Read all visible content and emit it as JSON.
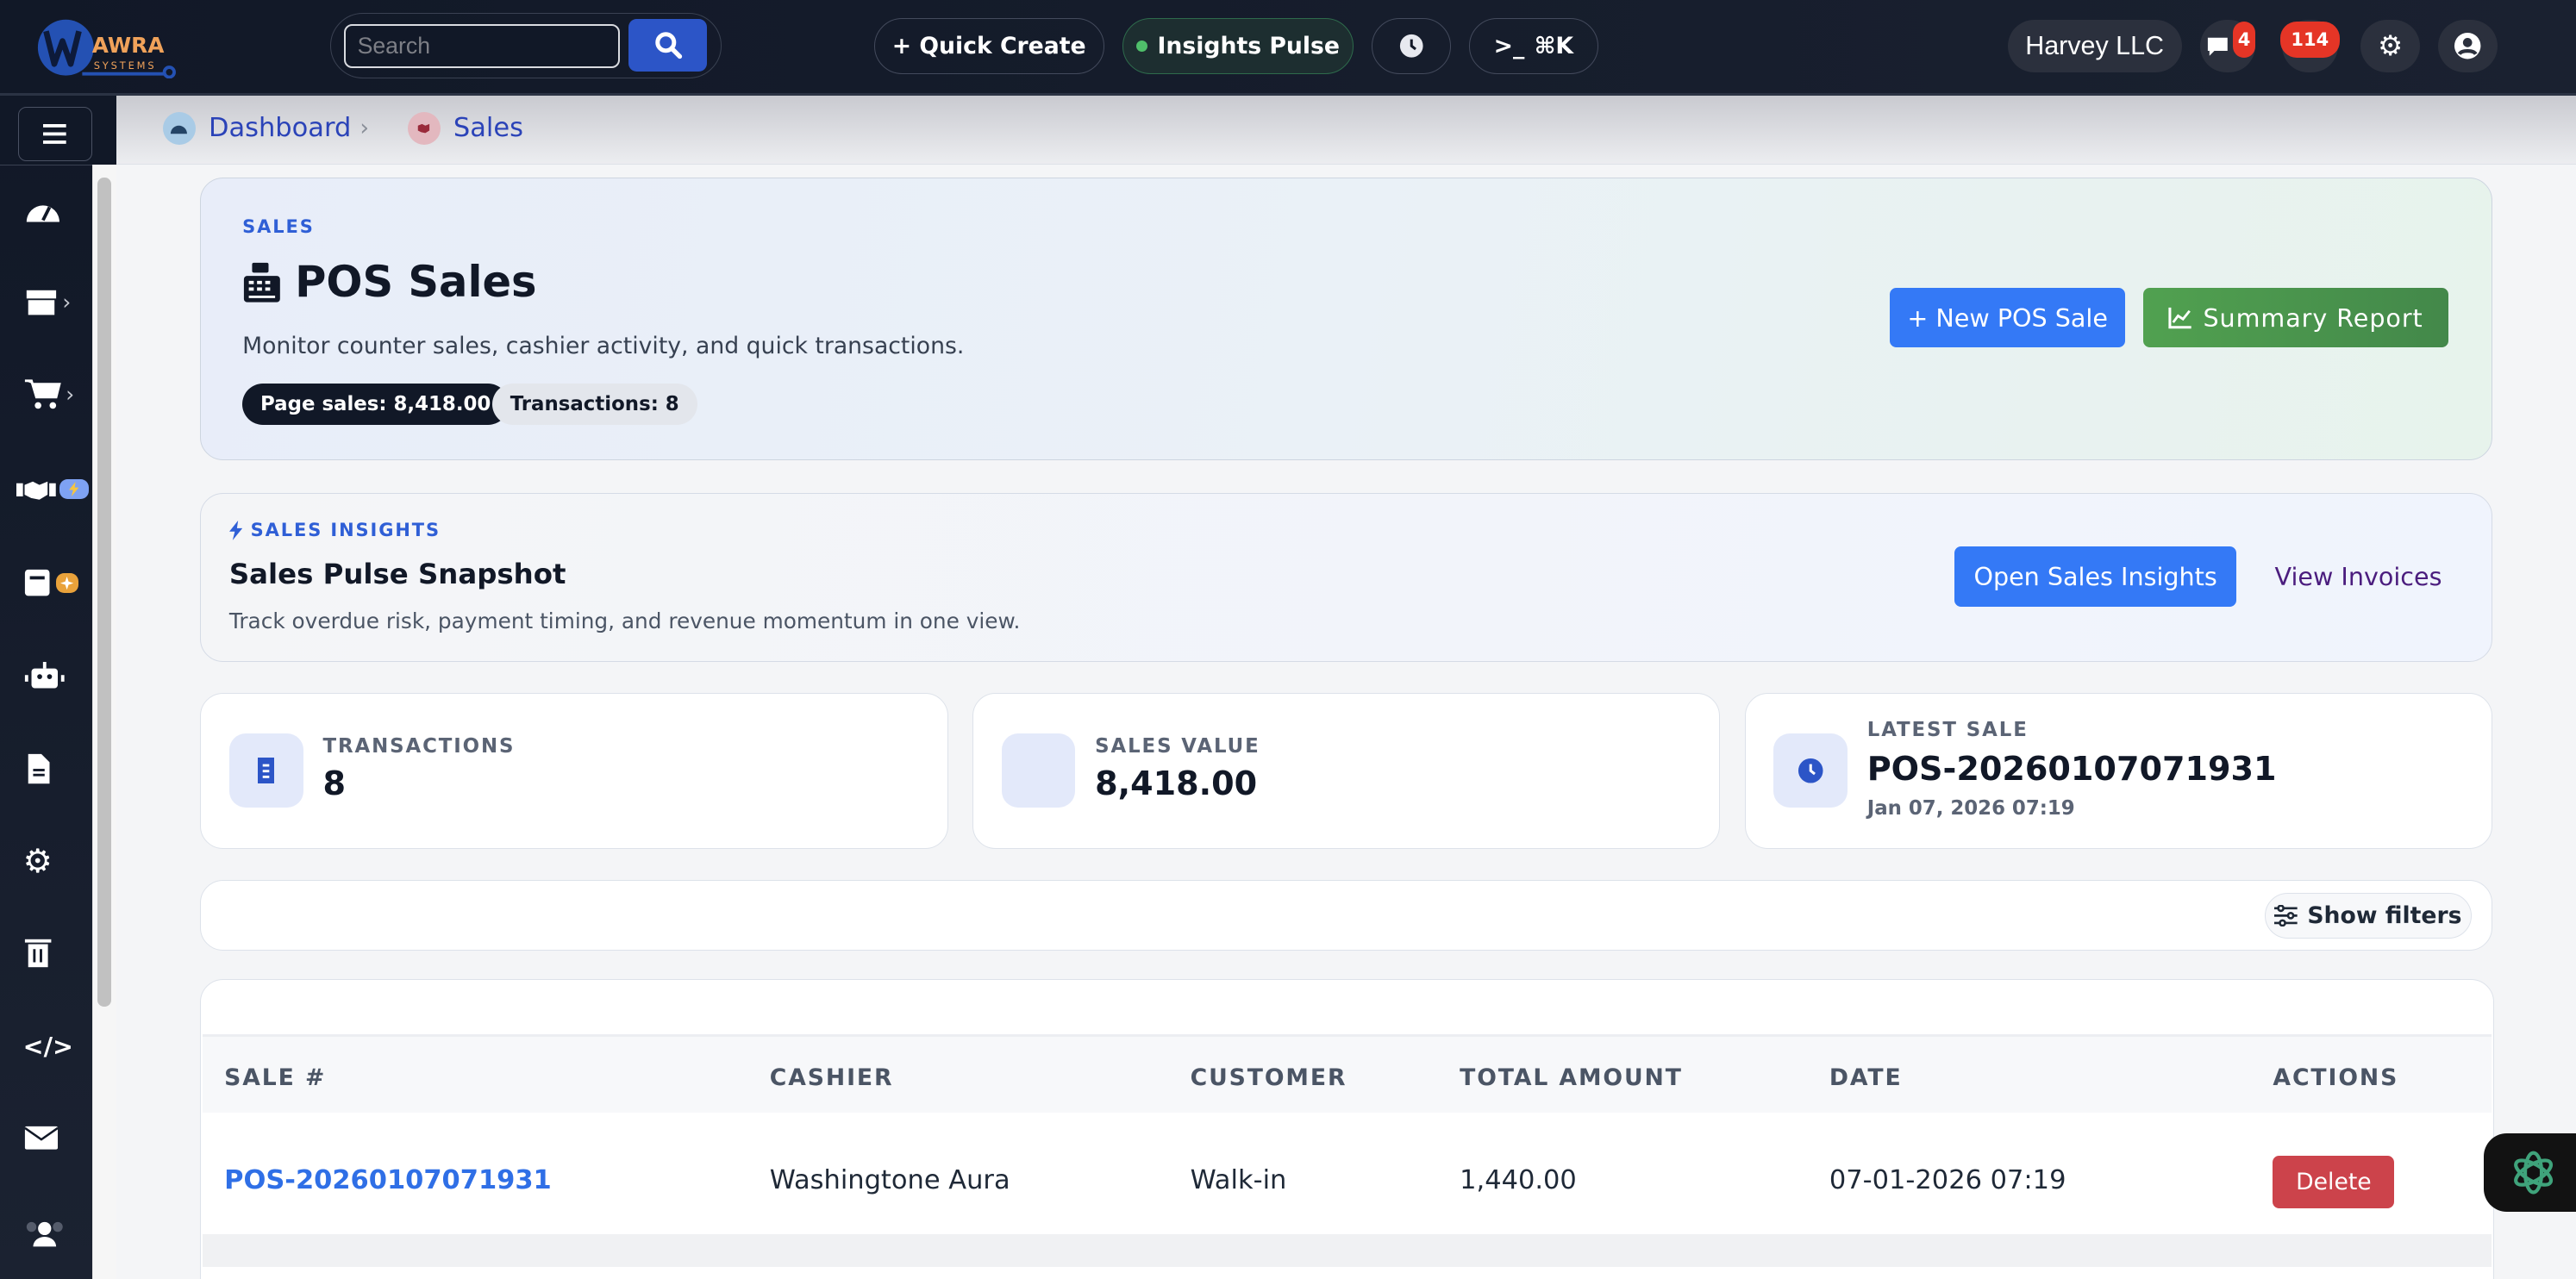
{
  "topbar": {
    "logo_text": "AWRA SYSTEMS",
    "search_placeholder": "Search",
    "quick_create": "+ Quick Create",
    "insights_pulse": "Insights Pulse",
    "command_label": "⌘K",
    "company": "Harvey LLC",
    "notifications_count": "4",
    "alerts_count": "114"
  },
  "breadcrumb": {
    "items": [
      "Dashboard",
      "Sales"
    ],
    "separator": "›"
  },
  "hero": {
    "eyebrow": "SALES",
    "title": "POS Sales",
    "subtitle": "Monitor counter sales, cashier activity, and quick transactions.",
    "page_sales": "Page sales: 8,418.00",
    "transactions": "Transactions: 8",
    "new_sale": "+ New POS Sale",
    "summary_report": "Summary Report"
  },
  "insights": {
    "eyebrow": "SALES INSIGHTS",
    "title": "Sales Pulse Snapshot",
    "subtitle": "Track overdue risk, payment timing, and revenue momentum in one view.",
    "open_button": "Open Sales Insights",
    "view_invoices": "View Invoices"
  },
  "kpis": [
    {
      "label": "TRANSACTIONS",
      "value": "8",
      "icon": "receipt-icon"
    },
    {
      "label": "SALES VALUE",
      "value": "8,418.00",
      "icon": "blank"
    },
    {
      "label": "LATEST SALE",
      "value": "POS-20260107071931",
      "sub": "Jan 07, 2026 07:19",
      "icon": "clock-icon"
    }
  ],
  "filters": {
    "show_filters": "Show filters"
  },
  "table": {
    "columns": [
      "SALE #",
      "CASHIER",
      "CUSTOMER",
      "TOTAL AMOUNT",
      "DATE",
      "ACTIONS"
    ],
    "rows": [
      {
        "sale": "POS-20260107071931",
        "cashier": "Washingtone Aura",
        "customer": "Walk-in",
        "total": "1,440.00",
        "date": "07-01-2026 07:19",
        "action": "Delete"
      }
    ]
  },
  "colors": {
    "primary": "#3479f6",
    "success": "#4a9a4a",
    "danger": "#cc434b",
    "topbar": "#111827"
  }
}
